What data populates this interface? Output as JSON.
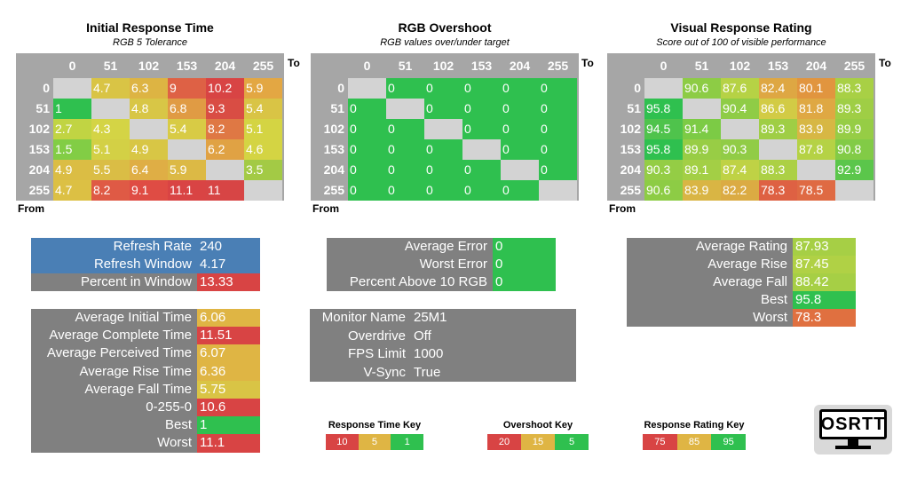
{
  "chart_data": [
    {
      "type": "heatmap",
      "title": "Initial Response Time",
      "subtitle": "RGB 5 Tolerance",
      "x_axis_label": "To",
      "y_axis_label": "From",
      "to_levels": [
        "0",
        "51",
        "102",
        "153",
        "204",
        "255"
      ],
      "from_levels": [
        "0",
        "51",
        "102",
        "153",
        "204",
        "255"
      ],
      "cells": [
        [
          "",
          "4.7",
          "6.3",
          "9",
          "10.2",
          "5.9"
        ],
        [
          "1",
          "",
          "4.8",
          "6.8",
          "9.3",
          "5.4"
        ],
        [
          "2.7",
          "4.3",
          "",
          "5.4",
          "8.2",
          "5.1"
        ],
        [
          "1.5",
          "5.1",
          "4.9",
          "",
          "6.2",
          "4.6"
        ],
        [
          "4.9",
          "5.5",
          "6.4",
          "5.9",
          "",
          "3.5"
        ],
        [
          "4.7",
          "8.2",
          "9.1",
          "11.1",
          "11",
          ""
        ]
      ],
      "colors": [
        [
          "#d3d3d3",
          "#d9c445",
          "#ddb443",
          "#de6145",
          "#d84444",
          "#e3a743"
        ],
        [
          "#2fc04f",
          "#d3d3d3",
          "#d8c646",
          "#e09b44",
          "#d94d44",
          "#d9c445"
        ],
        [
          "#c1d443",
          "#d4d445",
          "#d3d3d3",
          "#d8cb45",
          "#df7844",
          "#d4d443"
        ],
        [
          "#82cd45",
          "#d3d045",
          "#d8c645",
          "#d3d3d3",
          "#e0a244",
          "#d4d443"
        ],
        [
          "#dbbd44",
          "#dabd45",
          "#dfae45",
          "#dcb945",
          "#d3d3d3",
          "#a3ca45"
        ],
        [
          "#dcc044",
          "#df5a45",
          "#df4c44",
          "#d94444",
          "#d74545",
          "#d3d3d3"
        ]
      ]
    },
    {
      "type": "heatmap",
      "title": "RGB Overshoot",
      "subtitle": "RGB values over/under target",
      "x_axis_label": "To",
      "y_axis_label": "From",
      "to_levels": [
        "0",
        "51",
        "102",
        "153",
        "204",
        "255"
      ],
      "from_levels": [
        "0",
        "51",
        "102",
        "153",
        "204",
        "255"
      ],
      "cells": [
        [
          "",
          "0",
          "0",
          "0",
          "0",
          "0"
        ],
        [
          "0",
          "",
          "0",
          "0",
          "0",
          "0"
        ],
        [
          "0",
          "0",
          "",
          "0",
          "0",
          "0"
        ],
        [
          "0",
          "0",
          "0",
          "",
          "0",
          "0"
        ],
        [
          "0",
          "0",
          "0",
          "0",
          "",
          "0"
        ],
        [
          "0",
          "0",
          "0",
          "0",
          "0",
          ""
        ]
      ],
      "colors": [
        [
          "#d3d3d3",
          "#2fc04f",
          "#2fc04f",
          "#2fc04f",
          "#2fc04f",
          "#2fc04f"
        ],
        [
          "#2fc04f",
          "#d3d3d3",
          "#2fc04f",
          "#2fc04f",
          "#2fc04f",
          "#2fc04f"
        ],
        [
          "#2fc04f",
          "#2fc04f",
          "#d3d3d3",
          "#2fc04f",
          "#2fc04f",
          "#2fc04f"
        ],
        [
          "#2fc04f",
          "#2fc04f",
          "#2fc04f",
          "#d3d3d3",
          "#2fc04f",
          "#2fc04f"
        ],
        [
          "#2fc04f",
          "#2fc04f",
          "#2fc04f",
          "#2fc04f",
          "#d3d3d3",
          "#2fc04f"
        ],
        [
          "#2fc04f",
          "#2fc04f",
          "#2fc04f",
          "#2fc04f",
          "#2fc04f",
          "#d3d3d3"
        ]
      ]
    },
    {
      "type": "heatmap",
      "title": "Visual Response Rating",
      "subtitle": "Score out of 100 of visible performance",
      "x_axis_label": "To",
      "y_axis_label": "From",
      "to_levels": [
        "0",
        "51",
        "102",
        "153",
        "204",
        "255"
      ],
      "from_levels": [
        "0",
        "51",
        "102",
        "153",
        "204",
        "255"
      ],
      "cells": [
        [
          "",
          "90.6",
          "87.6",
          "82.4",
          "80.1",
          "88.3"
        ],
        [
          "95.8",
          "",
          "90.4",
          "86.6",
          "81.8",
          "89.3"
        ],
        [
          "94.5",
          "91.4",
          "",
          "89.3",
          "83.9",
          "89.9"
        ],
        [
          "95.8",
          "89.9",
          "90.3",
          "",
          "87.8",
          "90.8"
        ],
        [
          "90.3",
          "89.1",
          "87.4",
          "88.3",
          "",
          "92.9"
        ],
        [
          "90.6",
          "83.9",
          "82.2",
          "78.3",
          "78.5",
          ""
        ]
      ],
      "colors": [
        [
          "#d3d3d3",
          "#8dcc45",
          "#b6d245",
          "#dea743",
          "#e1953f",
          "#a8d045"
        ],
        [
          "#2fc04f",
          "#d3d3d3",
          "#8fcc46",
          "#d2cb45",
          "#dfa843",
          "#9fce45"
        ],
        [
          "#4fc34c",
          "#7ccb45",
          "#d3d3d3",
          "#9fce45",
          "#d7b744",
          "#96cd45"
        ],
        [
          "#2fc04f",
          "#98cd45",
          "#91cc46",
          "#d3d3d3",
          "#b5d245",
          "#82cb46"
        ],
        [
          "#94cd45",
          "#a3cf45",
          "#bfd245",
          "#acd045",
          "#d3d3d3",
          "#5bc64b"
        ],
        [
          "#8dcc45",
          "#d9b544",
          "#dbab43",
          "#de6143",
          "#df6a43",
          "#d3d3d3"
        ]
      ]
    }
  ],
  "panels": {
    "refresh": {
      "rows": [
        {
          "label": "Refresh Rate",
          "value": "240",
          "label_color": "#4a7fb5",
          "value_color": "#4a7fb5"
        },
        {
          "label": "Refresh Window",
          "value": "4.17",
          "label_color": "#4a7fb5",
          "value_color": "#4a7fb5"
        },
        {
          "label": "Percent in Window",
          "value": "13.33",
          "label_color": "#808080",
          "value_color": "#d84444"
        }
      ]
    },
    "times": {
      "rows": [
        {
          "label": "Average Initial Time",
          "value": "6.06",
          "value_color": "#dfb544"
        },
        {
          "label": "Average Complete Time",
          "value": "11.51",
          "value_color": "#d84444"
        },
        {
          "label": "Average Perceived Time",
          "value": "6.07",
          "value_color": "#dfb544"
        },
        {
          "label": "Average Rise Time",
          "value": "6.36",
          "value_color": "#dfb544"
        },
        {
          "label": "Average Fall Time",
          "value": "5.75",
          "value_color": "#d9c445"
        },
        {
          "label": "0-255-0",
          "value": "10.6",
          "value_color": "#d84444"
        },
        {
          "label": "Best",
          "value": "1",
          "value_color": "#2fc04f"
        },
        {
          "label": "Worst",
          "value": "11.1",
          "value_color": "#d84444"
        }
      ]
    },
    "errors": {
      "rows": [
        {
          "label": "Average Error",
          "value": "0",
          "value_color": "#2fc04f"
        },
        {
          "label": "Worst Error",
          "value": "0",
          "value_color": "#2fc04f"
        },
        {
          "label": "Percent Above 10 RGB",
          "value": "0",
          "value_color": "#2fc04f"
        }
      ]
    },
    "monitor": {
      "rows": [
        {
          "label": "Monitor Name",
          "value": "25M1"
        },
        {
          "label": "Overdrive",
          "value": "Off"
        },
        {
          "label": "FPS Limit",
          "value": "1000"
        },
        {
          "label": "V-Sync",
          "value": "True"
        }
      ]
    },
    "ratings": {
      "rows": [
        {
          "label": "Average Rating",
          "value": "87.93",
          "value_color": "#a6cf45"
        },
        {
          "label": "Average Rise",
          "value": "87.45",
          "value_color": "#b0d145"
        },
        {
          "label": "Average Fall",
          "value": "88.42",
          "value_color": "#a6cf45"
        },
        {
          "label": "Best",
          "value": "95.8",
          "value_color": "#2fc04f"
        },
        {
          "label": "Worst",
          "value": "78.3",
          "value_color": "#e07040"
        }
      ]
    }
  },
  "keys": [
    {
      "title": "Response Time Key",
      "items": [
        {
          "text": "10",
          "color": "#d84444"
        },
        {
          "text": "5",
          "color": "#dfb544"
        },
        {
          "text": "1",
          "color": "#2fc04f"
        }
      ]
    },
    {
      "title": "Overshoot Key",
      "items": [
        {
          "text": "20",
          "color": "#d84444"
        },
        {
          "text": "15",
          "color": "#dfb544"
        },
        {
          "text": "5",
          "color": "#2fc04f"
        }
      ]
    },
    {
      "title": "Response Rating Key",
      "items": [
        {
          "text": "75",
          "color": "#d84444"
        },
        {
          "text": "85",
          "color": "#dfb544"
        },
        {
          "text": "95",
          "color": "#2fc04f"
        }
      ]
    }
  ],
  "logo": {
    "text": "OSRTT"
  }
}
